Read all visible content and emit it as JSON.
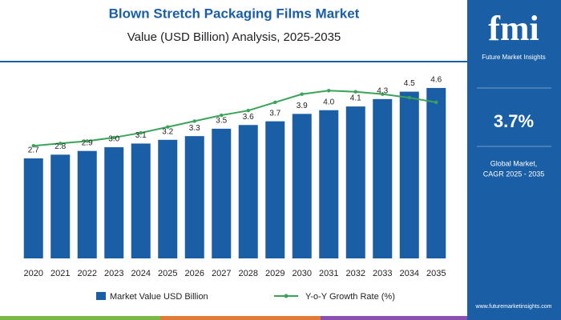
{
  "chart_data": {
    "type": "bar-line",
    "title": "Blown Stretch Packaging Films Market",
    "subtitle": "Value (USD Billion) Analysis, 2025-2035",
    "categories": [
      "2020",
      "2021",
      "2022",
      "2023",
      "2024",
      "2025",
      "2026",
      "2027",
      "2028",
      "2029",
      "2030",
      "2031",
      "2032",
      "2033",
      "2034",
      "2035"
    ],
    "ylim": [
      0,
      5.7
    ],
    "y2lim": [
      0,
      9
    ],
    "series": [
      {
        "name": "Market Value USD Billion",
        "color": "#1a5ea6",
        "type": "bar",
        "values": [
          2.7,
          2.8,
          2.9,
          3.0,
          3.1,
          3.2,
          3.3,
          3.5,
          3.6,
          3.7,
          3.9,
          4.0,
          4.1,
          4.3,
          4.5,
          4.6
        ],
        "value_labels": [
          "2.7",
          "2.8",
          "2.9",
          "3.0",
          "3.1",
          "3.2",
          "3.3",
          "3.5",
          "3.6",
          "3.7",
          "3.9",
          "4.0",
          "4.1",
          "4.3",
          "4.5",
          "4.6"
        ]
      },
      {
        "name": "Y-o-Y Growth Rate (%)",
        "color": "#3aa35a",
        "type": "line",
        "axis": "y2",
        "values": [
          4.8,
          4.9,
          5.0,
          5.15,
          5.35,
          5.6,
          5.85,
          6.1,
          6.3,
          6.65,
          7.0,
          7.15,
          7.1,
          7.0,
          6.85,
          6.65
        ]
      }
    ]
  },
  "panel": {
    "logo": "fmi",
    "brand": "Future Market Insights",
    "cagr": "3.7%",
    "cagr_caption_1": "Global Market,",
    "cagr_caption_2": "CAGR 2025 - 2035",
    "website": "www.futuremarketinsights.com"
  }
}
